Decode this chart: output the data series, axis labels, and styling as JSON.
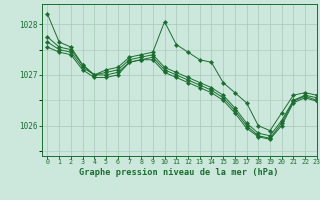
{
  "title": "Graphe pression niveau de la mer (hPa)",
  "background_color": "#cce8dc",
  "grid_color": "#a8c8b8",
  "line_color": "#1a6e2e",
  "xlim": [
    -0.5,
    23
  ],
  "ylim": [
    1025.4,
    1028.4
  ],
  "yticks": [
    1026,
    1027,
    1028
  ],
  "xticks": [
    0,
    1,
    2,
    3,
    4,
    5,
    6,
    7,
    8,
    9,
    10,
    11,
    12,
    13,
    14,
    15,
    16,
    17,
    18,
    19,
    20,
    21,
    22,
    23
  ],
  "series": [
    [
      1028.2,
      1027.65,
      1027.55,
      1027.2,
      1027.0,
      1027.1,
      1027.15,
      1027.35,
      1027.4,
      1027.45,
      1028.05,
      1027.6,
      1027.45,
      1027.3,
      1027.25,
      1026.85,
      1026.65,
      1026.45,
      1026.0,
      1025.9,
      1026.25,
      1026.6,
      1026.65,
      1026.6
    ],
    [
      1027.75,
      1027.55,
      1027.5,
      1027.2,
      1027.0,
      1027.05,
      1027.1,
      1027.3,
      1027.35,
      1027.4,
      1027.15,
      1027.05,
      1026.95,
      1026.85,
      1026.75,
      1026.6,
      1026.35,
      1026.05,
      1025.85,
      1025.8,
      1026.1,
      1026.5,
      1026.6,
      1026.55
    ],
    [
      1027.65,
      1027.5,
      1027.45,
      1027.15,
      1027.0,
      1027.0,
      1027.05,
      1027.25,
      1027.3,
      1027.35,
      1027.1,
      1027.0,
      1026.9,
      1026.8,
      1026.7,
      1026.55,
      1026.3,
      1026.0,
      1025.8,
      1025.75,
      1026.05,
      1026.48,
      1026.58,
      1026.5
    ],
    [
      1027.55,
      1027.45,
      1027.4,
      1027.1,
      1026.95,
      1026.95,
      1027.0,
      1027.25,
      1027.3,
      1027.3,
      1027.05,
      1026.95,
      1026.85,
      1026.75,
      1026.65,
      1026.5,
      1026.25,
      1025.95,
      1025.78,
      1025.73,
      1026.0,
      1026.45,
      1026.55,
      1026.48
    ]
  ]
}
